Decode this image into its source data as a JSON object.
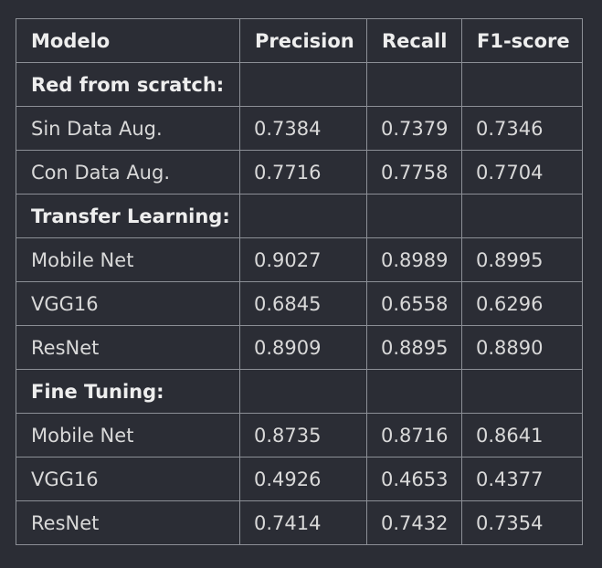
{
  "table": {
    "headers": [
      "Modelo",
      "Precision",
      "Recall",
      "F1-score"
    ],
    "sections": [
      {
        "label": "Red from scratch:",
        "rows": [
          {
            "model": "Sin Data Aug.",
            "precision": "0.7384",
            "recall": "0.7379",
            "f1": "0.7346"
          },
          {
            "model": "Con Data Aug.",
            "precision": "0.7716",
            "recall": "0.7758",
            "f1": "0.7704"
          }
        ]
      },
      {
        "label": "Transfer Learning:",
        "rows": [
          {
            "model": "Mobile Net",
            "precision": "0.9027",
            "recall": "0.8989",
            "f1": "0.8995"
          },
          {
            "model": "VGG16",
            "precision": "0.6845",
            "recall": "0.6558",
            "f1": "0.6296"
          },
          {
            "model": "ResNet",
            "precision": "0.8909",
            "recall": "0.8895",
            "f1": "0.8890"
          }
        ]
      },
      {
        "label": "Fine Tuning:",
        "rows": [
          {
            "model": "Mobile Net",
            "precision": "0.8735",
            "recall": "0.8716",
            "f1": "0.8641"
          },
          {
            "model": "VGG16",
            "precision": "0.4926",
            "recall": "0.4653",
            "f1": "0.4377"
          },
          {
            "model": "ResNet",
            "precision": "0.7414",
            "recall": "0.7432",
            "f1": "0.7354"
          }
        ]
      }
    ]
  }
}
